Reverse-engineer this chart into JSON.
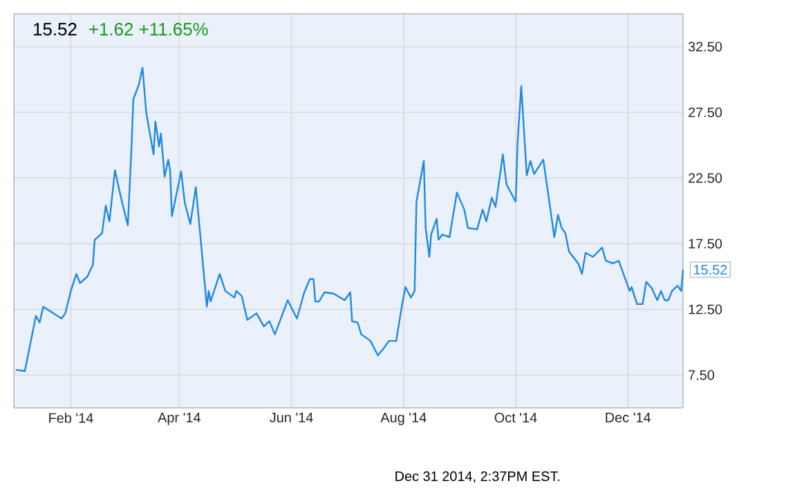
{
  "chart_data": {
    "type": "line",
    "title": "15.52",
    "subtitle": "+1.62  +11.65%",
    "annotations": [
      {
        "text": "15.52",
        "x": "2014-12-31",
        "y": 15.52
      },
      "Dec 31 2014, 2:37PM EST."
    ],
    "xlim": [
      "2014-01-01",
      "2014-12-31"
    ],
    "xticks": [
      {
        "value": "2014-02-01",
        "label": "Feb '14"
      },
      {
        "value": "2014-04-01",
        "label": "Apr '14"
      },
      {
        "value": "2014-06-01",
        "label": "Jun '14"
      },
      {
        "value": "2014-08-01",
        "label": "Aug '14"
      },
      {
        "value": "2014-10-01",
        "label": "Oct '14"
      },
      {
        "value": "2014-12-01",
        "label": "Dec '14"
      }
    ],
    "ylim": [
      5,
      35
    ],
    "yticks": [
      {
        "value": 7.5,
        "label": "7.50"
      },
      {
        "value": 12.5,
        "label": "12.50"
      },
      {
        "value": 17.5,
        "label": "17.50"
      },
      {
        "value": 22.5,
        "label": "22.50"
      },
      {
        "value": 27.5,
        "label": "27.50"
      },
      {
        "value": 32.5,
        "label": "32.50"
      }
    ],
    "grid": true,
    "marker": "none",
    "line_style": "solid",
    "x": [
      "2014-01-02",
      "2014-01-07",
      "2014-01-13",
      "2014-01-15",
      "2014-01-17",
      "2014-01-27",
      "2014-01-29",
      "2014-02-01",
      "2014-02-04",
      "2014-02-06",
      "2014-02-10",
      "2014-02-13",
      "2014-02-14",
      "2014-02-18",
      "2014-02-20",
      "2014-02-22",
      "2014-02-25",
      "2014-02-27",
      "2014-03-01",
      "2014-03-04",
      "2014-03-06",
      "2014-03-07",
      "2014-03-10",
      "2014-03-12",
      "2014-03-14",
      "2014-03-18",
      "2014-03-19",
      "2014-03-21",
      "2014-03-22",
      "2014-03-24",
      "2014-03-26",
      "2014-03-27",
      "2014-03-28",
      "2014-04-02",
      "2014-04-04",
      "2014-04-07",
      "2014-04-10",
      "2014-04-16",
      "2014-04-17",
      "2014-04-18",
      "2014-04-23",
      "2014-04-26",
      "2014-05-01",
      "2014-05-02",
      "2014-05-05",
      "2014-05-08",
      "2014-05-13",
      "2014-05-17",
      "2014-05-20",
      "2014-05-23",
      "2014-05-30",
      "2014-06-04",
      "2014-06-08",
      "2014-06-11",
      "2014-06-13",
      "2014-06-14",
      "2014-06-16",
      "2014-06-19",
      "2014-06-24",
      "2014-06-30",
      "2014-07-03",
      "2014-07-04",
      "2014-07-07",
      "2014-07-09",
      "2014-07-14",
      "2014-07-18",
      "2014-07-21",
      "2014-07-24",
      "2014-07-28",
      "2014-07-31",
      "2014-08-02",
      "2014-08-05",
      "2014-08-07",
      "2014-08-08",
      "2014-08-12",
      "2014-08-13",
      "2014-08-15",
      "2014-08-16",
      "2014-08-19",
      "2014-08-20",
      "2014-08-22",
      "2014-08-26",
      "2014-08-30",
      "2014-09-03",
      "2014-09-05",
      "2014-09-10",
      "2014-09-13",
      "2014-09-15",
      "2014-09-18",
      "2014-09-20",
      "2014-09-24",
      "2014-09-26",
      "2014-10-01",
      "2014-10-02",
      "2014-10-04",
      "2014-10-07",
      "2014-10-09",
      "2014-10-11",
      "2014-10-16",
      "2014-10-22",
      "2014-10-24",
      "2014-10-26",
      "2014-10-28",
      "2014-10-30",
      "2014-11-04",
      "2014-11-06",
      "2014-11-08",
      "2014-11-12",
      "2014-11-17",
      "2014-11-19",
      "2014-11-23",
      "2014-11-26",
      "2014-12-02",
      "2014-12-03",
      "2014-12-06",
      "2014-12-09",
      "2014-12-11",
      "2014-12-14",
      "2014-12-17",
      "2014-12-19",
      "2014-12-21",
      "2014-12-23",
      "2014-12-25",
      "2014-12-28",
      "2014-12-30",
      "2014-12-31"
    ],
    "series": [
      {
        "color": "#1e88e5",
        "values": [
          7.9,
          7.8,
          12.0,
          11.5,
          12.7,
          11.8,
          12.2,
          13.9,
          15.2,
          14.5,
          15.0,
          15.9,
          17.8,
          18.3,
          20.4,
          19.2,
          23.1,
          21.8,
          20.6,
          18.9,
          24.8,
          28.5,
          29.6,
          30.9,
          27.5,
          24.3,
          26.8,
          24.9,
          25.9,
          22.6,
          23.9,
          23.1,
          19.6,
          23.0,
          20.6,
          19.0,
          21.8,
          12.7,
          13.9,
          13.1,
          15.2,
          13.9,
          13.4,
          13.9,
          13.5,
          11.7,
          12.2,
          11.2,
          11.6,
          10.6,
          13.2,
          11.8,
          13.8,
          14.8,
          14.8,
          13.1,
          13.1,
          13.8,
          13.7,
          13.2,
          13.8,
          11.6,
          11.5,
          10.6,
          10.1,
          9.0,
          9.5,
          10.1,
          10.1,
          12.7,
          14.2,
          13.4,
          13.9,
          20.7,
          23.8,
          18.7,
          16.5,
          18.2,
          19.4,
          17.8,
          18.2,
          18.0,
          21.4,
          20.1,
          18.7,
          18.6,
          20.1,
          19.2,
          21.0,
          20.3,
          24.3,
          22.0,
          20.7,
          25.2,
          29.5,
          22.7,
          23.8,
          22.8,
          23.9,
          18.0,
          19.7,
          18.7,
          18.3,
          16.9,
          16.0,
          15.2,
          16.8,
          16.5,
          17.2,
          16.2,
          16.0,
          16.2,
          13.9,
          14.2,
          12.9,
          12.9,
          14.6,
          14.1,
          13.2,
          13.9,
          13.2,
          13.2,
          13.9,
          14.3,
          13.9,
          15.52
        ]
      }
    ]
  }
}
